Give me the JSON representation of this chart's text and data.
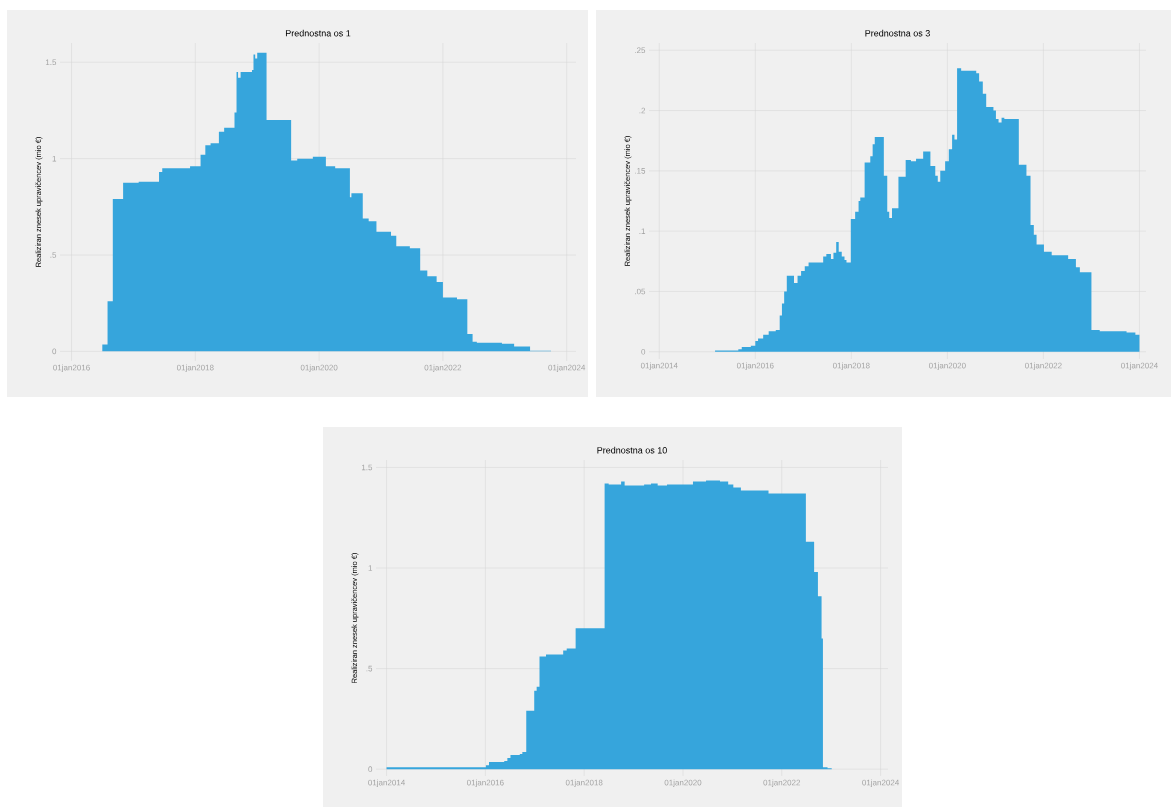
{
  "chart_data": [
    {
      "type": "area",
      "title": "Prednostna os 1",
      "ylabel": "Realiziran znesek upravičencev (mio €)",
      "color": "#36a5dc",
      "grid": true,
      "xlim": [
        "2015-10-25",
        "2024-02-25"
      ],
      "ylim": [
        -0.05,
        1.6
      ],
      "xticks": [
        {
          "value": "2016-01-01",
          "label": "01jan2016"
        },
        {
          "value": "2018-01-01",
          "label": "01jan2018"
        },
        {
          "value": "2020-01-01",
          "label": "01jan2020"
        },
        {
          "value": "2022-01-01",
          "label": "01jan2022"
        },
        {
          "value": "2024-01-01",
          "label": "01jan2024"
        }
      ],
      "yticks": [
        0,
        {
          "value": 0.5,
          "label": ".5"
        },
        1,
        1.5
      ],
      "x": [
        "2016-07-01",
        "2016-08-01",
        "2016-09-01",
        "2016-11-01",
        "2017-02-01",
        "2017-06-01",
        "2017-06-20",
        "2017-12-01",
        "2018-02-01",
        "2018-03-01",
        "2018-04-01",
        "2018-05-20",
        "2018-06-20",
        "2018-08-20",
        "2018-09-01",
        "2018-09-10",
        "2018-09-25",
        "2018-12-01",
        "2018-12-10",
        "2018-12-20",
        "2019-01-01",
        "2019-02-25",
        "2019-07-20",
        "2019-08-25",
        "2019-11-25",
        "2020-02-10",
        "2020-04-05",
        "2020-07-01",
        "2020-07-10",
        "2020-09-15",
        "2020-10-20",
        "2020-12-05",
        "2021-03-01",
        "2021-04-01",
        "2021-06-20",
        "2021-08-20",
        "2021-10-01",
        "2021-11-25",
        "2022-01-01",
        "2022-03-25",
        "2022-05-25",
        "2022-06-25",
        "2022-07-20",
        "2022-12-15",
        "2023-02-25",
        "2023-05-30",
        "2023-10-01"
      ],
      "values": [
        0.035,
        0.26,
        0.79,
        0.875,
        0.88,
        0.93,
        0.95,
        0.96,
        1.02,
        1.07,
        1.08,
        1.14,
        1.16,
        1.24,
        1.45,
        1.42,
        1.45,
        1.46,
        1.54,
        1.52,
        1.55,
        1.2,
        0.99,
        1.0,
        1.01,
        0.96,
        0.95,
        0.8,
        0.82,
        0.69,
        0.675,
        0.62,
        0.6,
        0.545,
        0.535,
        0.42,
        0.39,
        0.36,
        0.28,
        0.27,
        0.09,
        0.05,
        0.045,
        0.04,
        0.025,
        0.003,
        0
      ]
    },
    {
      "type": "area",
      "title": "Prednostna os 3",
      "ylabel": "Realiziran znesek upravičencev (mio €)",
      "color": "#36a5dc",
      "grid": true,
      "xlim": [
        "2013-10-15",
        "2024-02-20"
      ],
      "ylim": [
        -0.006,
        0.256
      ],
      "xticks": [
        {
          "value": "2014-01-01",
          "label": "01jan2014"
        },
        {
          "value": "2016-01-01",
          "label": "01jan2016"
        },
        {
          "value": "2018-01-01",
          "label": "01jan2018"
        },
        {
          "value": "2020-01-01",
          "label": "01jan2020"
        },
        {
          "value": "2022-01-01",
          "label": "01jan2022"
        },
        {
          "value": "2024-01-01",
          "label": "01jan2024"
        }
      ],
      "yticks": [
        0,
        {
          "value": 0.05,
          "label": ".05"
        },
        {
          "value": 0.1,
          "label": ".1"
        },
        {
          "value": 0.15,
          "label": ".15"
        },
        {
          "value": 0.2,
          "label": ".2"
        },
        {
          "value": 0.25,
          "label": ".25"
        }
      ],
      "x": [
        "2015-03-01",
        "2015-08-25",
        "2015-09-20",
        "2015-11-28",
        "2016-01-01",
        "2016-01-22",
        "2016-03-01",
        "2016-04-12",
        "2016-06-05",
        "2016-07-05",
        "2016-07-22",
        "2016-08-08",
        "2016-08-28",
        "2016-10-22",
        "2016-11-18",
        "2016-12-15",
        "2017-01-12",
        "2017-02-10",
        "2017-05-15",
        "2017-06-01",
        "2017-06-25",
        "2017-07-30",
        "2017-08-18",
        "2017-09-08",
        "2017-09-27",
        "2017-10-20",
        "2017-11-10",
        "2017-11-25",
        "2017-12-28",
        "2018-01-30",
        "2018-02-25",
        "2018-03-10",
        "2018-04-12",
        "2018-05-25",
        "2018-06-12",
        "2018-06-28",
        "2018-07-20",
        "2018-09-05",
        "2018-10-01",
        "2018-10-16",
        "2018-11-06",
        "2018-12-25",
        "2019-02-18",
        "2019-03-30",
        "2019-05-08",
        "2019-07-01",
        "2019-08-25",
        "2019-10-01",
        "2019-10-20",
        "2019-11-08",
        "2019-12-15",
        "2020-01-12",
        "2020-02-06",
        "2020-02-24",
        "2020-03-15",
        "2020-04-15",
        "2020-08-08",
        "2020-08-30",
        "2020-09-27",
        "2020-10-23",
        "2020-12-17",
        "2021-01-05",
        "2021-01-25",
        "2021-02-17",
        "2021-03-10",
        "2021-06-28",
        "2021-08-25",
        "2021-09-25",
        "2021-10-20",
        "2021-11-10",
        "2022-01-05",
        "2022-03-05",
        "2022-07-08",
        "2022-09-05",
        "2022-10-05",
        "2023-01-01",
        "2023-03-05",
        "2023-09-25",
        "2023-12-01",
        "2024-01-01"
      ],
      "values": [
        0.001,
        0.002,
        0.004,
        0.005,
        0.009,
        0.011,
        0.014,
        0.017,
        0.018,
        0.03,
        0.04,
        0.05,
        0.063,
        0.057,
        0.063,
        0.067,
        0.071,
        0.074,
        0.074,
        0.079,
        0.081,
        0.077,
        0.082,
        0.091,
        0.083,
        0.079,
        0.076,
        0.074,
        0.11,
        0.116,
        0.125,
        0.128,
        0.157,
        0.162,
        0.172,
        0.178,
        0.178,
        0.146,
        0.116,
        0.111,
        0.119,
        0.145,
        0.159,
        0.158,
        0.16,
        0.166,
        0.154,
        0.146,
        0.141,
        0.15,
        0.158,
        0.168,
        0.18,
        0.176,
        0.235,
        0.233,
        0.231,
        0.224,
        0.214,
        0.203,
        0.2,
        0.193,
        0.19,
        0.194,
        0.193,
        0.155,
        0.146,
        0.105,
        0.097,
        0.089,
        0.083,
        0.08,
        0.077,
        0.07,
        0.066,
        0.018,
        0.017,
        0.016,
        0.014,
        0.014
      ]
    },
    {
      "type": "area",
      "title": "Prednostna os 10",
      "ylabel": "Realiziran znesek upravičencev (mio €)",
      "color": "#36a5dc",
      "grid": true,
      "xlim": [
        "2013-10-15",
        "2024-02-25"
      ],
      "ylim": [
        -0.034,
        1.537
      ],
      "xticks": [
        {
          "value": "2014-01-01",
          "label": "01jan2014"
        },
        {
          "value": "2016-01-01",
          "label": "01jan2016"
        },
        {
          "value": "2018-01-01",
          "label": "01jan2018"
        },
        {
          "value": "2020-01-01",
          "label": "01jan2020"
        },
        {
          "value": "2022-01-01",
          "label": "01jan2022"
        },
        {
          "value": "2024-01-01",
          "label": "01jan2024"
        }
      ],
      "yticks": [
        0,
        {
          "value": 0.5,
          "label": ".5"
        },
        1,
        1.5
      ],
      "x": [
        "2014-01-01",
        "2016-01-05",
        "2016-01-28",
        "2016-05-20",
        "2016-06-12",
        "2016-07-05",
        "2016-09-12",
        "2016-10-01",
        "2016-10-30",
        "2016-12-28",
        "2017-01-15",
        "2017-02-05",
        "2017-03-25",
        "2017-07-30",
        "2017-08-25",
        "2017-10-30",
        "2018-06-01",
        "2018-07-01",
        "2018-10-01",
        "2018-10-27",
        "2019-03-20",
        "2019-05-10",
        "2019-06-28",
        "2019-09-05",
        "2020-03-15",
        "2020-06-20",
        "2020-10-01",
        "2020-12-01",
        "2021-01-08",
        "2021-03-05",
        "2021-09-25",
        "2022-06-28",
        "2022-08-28",
        "2022-09-25",
        "2022-10-22",
        "2022-11-01",
        "2022-12-05",
        "2023-01-05"
      ],
      "values": [
        0.01,
        0.02,
        0.035,
        0.04,
        0.055,
        0.07,
        0.075,
        0.085,
        0.29,
        0.39,
        0.41,
        0.56,
        0.57,
        0.59,
        0.6,
        0.7,
        1.42,
        1.415,
        1.43,
        1.41,
        1.415,
        1.42,
        1.41,
        1.415,
        1.43,
        1.435,
        1.43,
        1.415,
        1.4,
        1.385,
        1.37,
        1.13,
        0.98,
        0.86,
        0.65,
        0.01,
        0.005,
        0
      ]
    }
  ]
}
